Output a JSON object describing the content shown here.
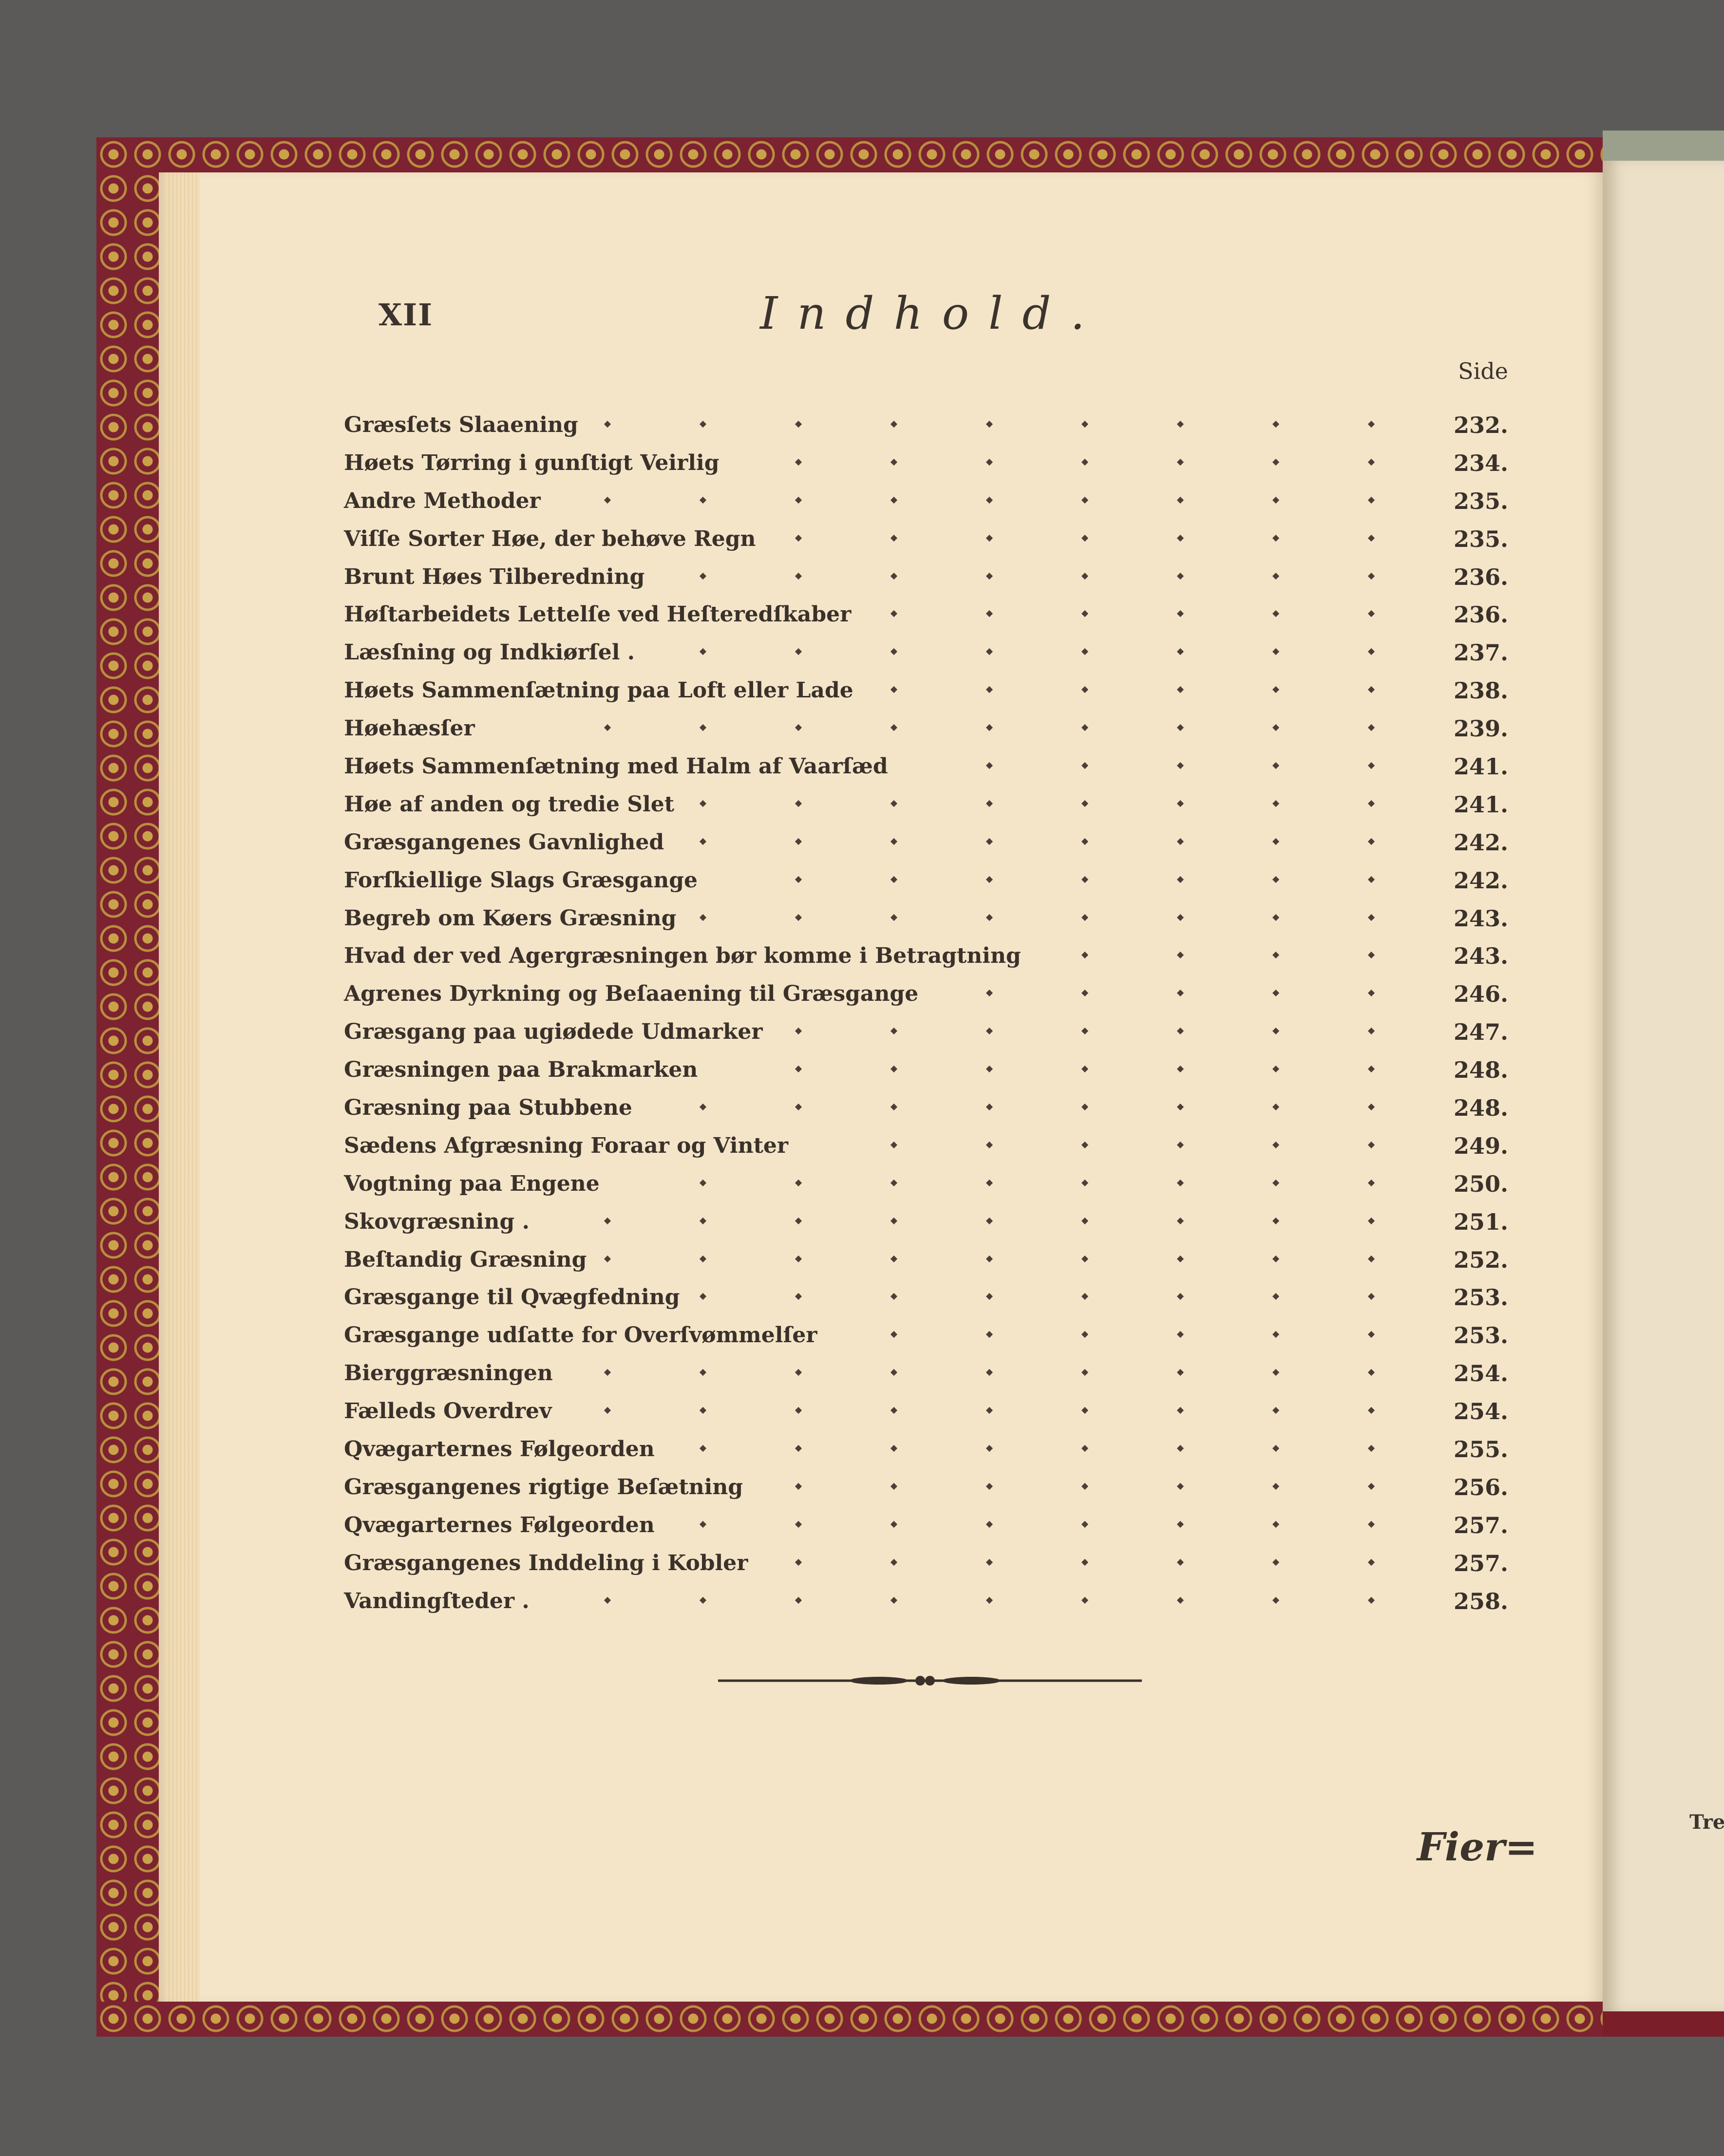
{
  "header": {
    "folio": "XII",
    "title": "Indhold.",
    "column_label": "Side"
  },
  "entries": [
    {
      "text": "Græsſets Slaaening",
      "page": "232."
    },
    {
      "text": "Høets Tørring i gunſtigt Veirlig",
      "page": "234."
    },
    {
      "text": "Andre Methoder",
      "page": "235."
    },
    {
      "text": "Viſſe Sorter Høe, der behøve Regn",
      "page": "235."
    },
    {
      "text": "Brunt Høes Tilberedning",
      "page": "236."
    },
    {
      "text": "Høſtarbeidets Lettelſe ved Heſteredſkaber",
      "page": "236."
    },
    {
      "text": "Læsſning og Indkiørſel .",
      "page": "237."
    },
    {
      "text": "Høets Sammenſætning paa Loft eller Lade",
      "page": "238."
    },
    {
      "text": "Høehæsſer",
      "page": "239."
    },
    {
      "text": "Høets Sammenſætning med Halm af Vaarſæd",
      "page": "241."
    },
    {
      "text": "Høe af anden og tredie Slet",
      "page": "241."
    },
    {
      "text": "Græsgangenes Gavnlighed",
      "page": "242."
    },
    {
      "text": "Forſkiellige Slags Græsgange",
      "page": "242."
    },
    {
      "text": "Begreb om Køers Græsning",
      "page": "243."
    },
    {
      "text": "Hvad der ved Agergræsningen bør komme i Betragtning",
      "page": "243."
    },
    {
      "text": "Agrenes Dyrkning og Beſaaening til Græsgange",
      "page": "246."
    },
    {
      "text": "Græsgang paa ugiødede Udmarker",
      "page": "247."
    },
    {
      "text": "Græsningen paa Brakmarken",
      "page": "248."
    },
    {
      "text": "Græsning paa Stubbene",
      "page": "248."
    },
    {
      "text": "Sædens Afgræsning Foraar og Vinter",
      "page": "249."
    },
    {
      "text": "Vogtning paa Engene",
      "page": "250."
    },
    {
      "text": "Skovgræsning .",
      "page": "251."
    },
    {
      "text": "Beſtandig Græsning",
      "page": "252."
    },
    {
      "text": "Græsgange til Qvægfedning",
      "page": "253."
    },
    {
      "text": "Græsgange udſatte for Overſvømmelſer",
      "page": "253."
    },
    {
      "text": "Bierggræsningen",
      "page": "254."
    },
    {
      "text": "Fælleds Overdrev",
      "page": "254."
    },
    {
      "text": "Qvægarternes Følgeorden",
      "page": "255."
    },
    {
      "text": "Græsgangenes rigtige Beſætning",
      "page": "256."
    },
    {
      "text": "Qvægarternes Følgeorden",
      "page": "257."
    },
    {
      "text": "Græsgangenes Inddeling i Kobler",
      "page": "257."
    },
    {
      "text": "Vandingſteder .",
      "page": "258."
    }
  ],
  "footer": {
    "catchword": "Fier=",
    "facing_page_catchword": "Tredi"
  },
  "colors": {
    "paper": "#f4e5c9",
    "ink": "#3a312a",
    "cover_red": "#7d2230",
    "gilt": "#c9a24a"
  }
}
